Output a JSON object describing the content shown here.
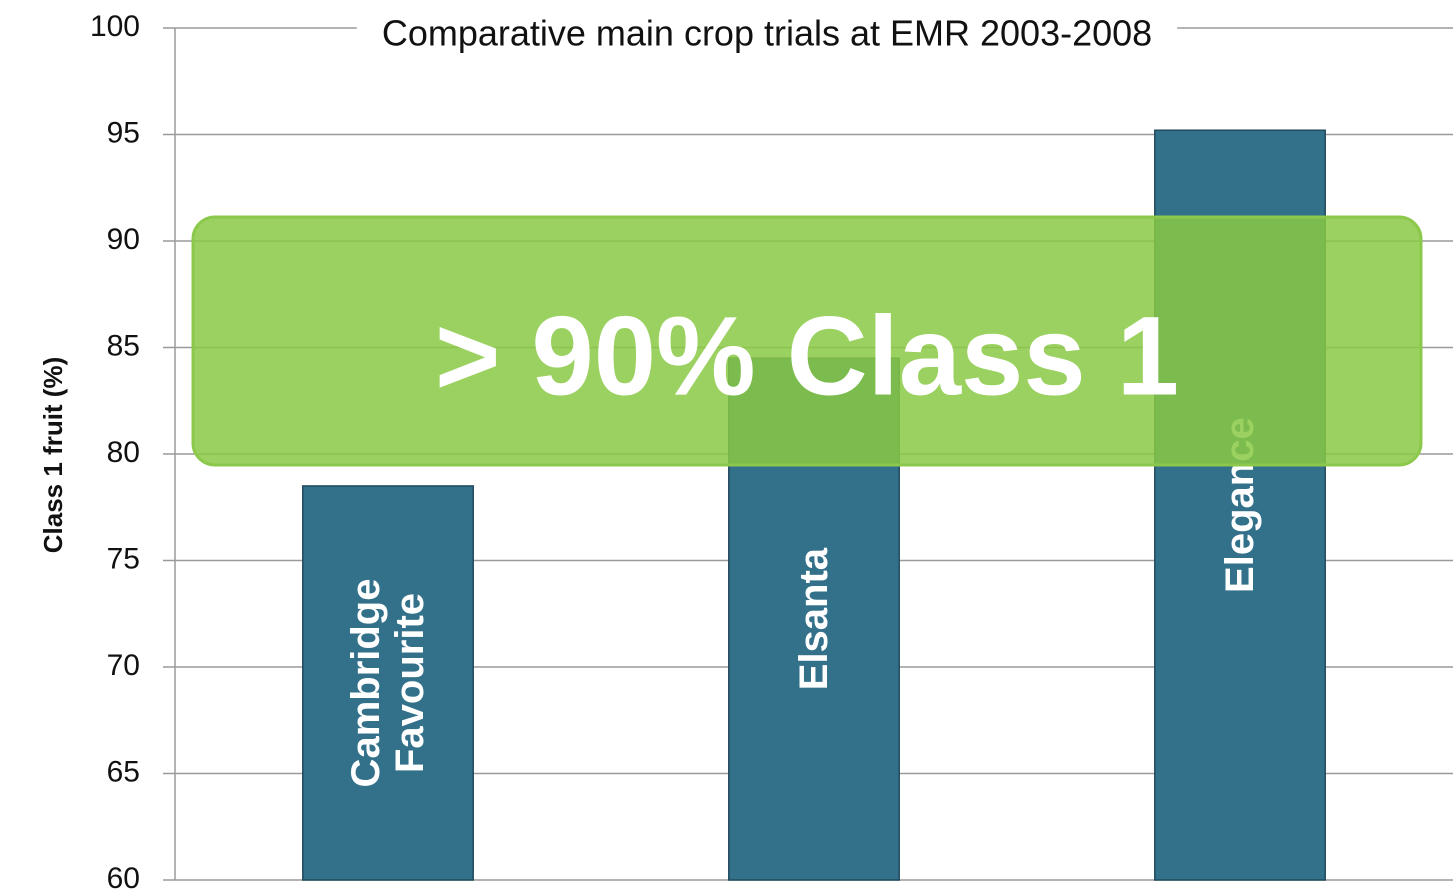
{
  "chart_data": {
    "type": "bar",
    "title": "Comparative main crop trials at EMR 2003-2008",
    "y_label": "Class 1 fruit (%)",
    "categories": [
      "Cambridge Favourite",
      "Elsanta",
      "Elegance"
    ],
    "values": [
      78.5,
      84.5,
      95.2
    ],
    "color": "#33718b",
    "ylim": [
      60,
      100
    ],
    "yticks": [
      60,
      65,
      70,
      75,
      80,
      85,
      90,
      95,
      100
    ],
    "grid": true,
    "annotation": "> 90% Class 1"
  }
}
